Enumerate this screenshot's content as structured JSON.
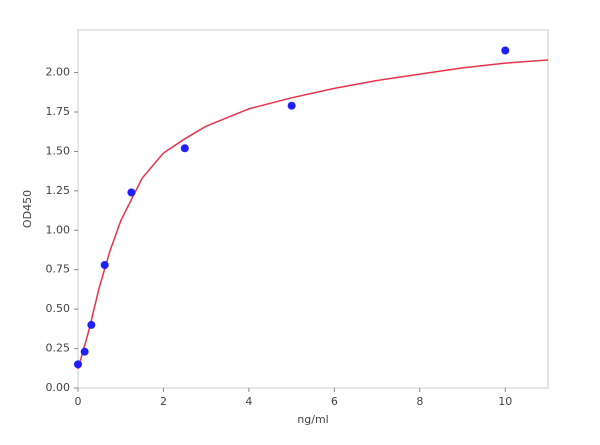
{
  "chart_data": {
    "type": "scatter",
    "xlabel": "ng/ml",
    "ylabel": "OD450",
    "xlim": [
      0,
      11
    ],
    "ylim": [
      0,
      2.27
    ],
    "xticks": [
      0,
      2,
      4,
      6,
      8,
      10
    ],
    "yticks": [
      {
        "value": 0,
        "label": "0.00"
      },
      {
        "value": 0.25,
        "label": "0.25"
      },
      {
        "value": 0.5,
        "label": "0.50"
      },
      {
        "value": 0.75,
        "label": "0.75"
      },
      {
        "value": 1,
        "label": "1.00"
      },
      {
        "value": 1.25,
        "label": "1.25"
      },
      {
        "value": 1.5,
        "label": "1.50"
      },
      {
        "value": 1.75,
        "label": "1.75"
      },
      {
        "value": 2,
        "label": "2.00"
      }
    ],
    "grid": false,
    "series": [
      {
        "mode": "markers",
        "color": "#1f1fff",
        "x": [
          0,
          0.156,
          0.3125,
          0.625,
          1.25,
          2.5,
          5,
          10
        ],
        "values": [
          0.15,
          0.23,
          0.4,
          0.78,
          1.24,
          1.52,
          1.79,
          2.14
        ]
      },
      {
        "mode": "line",
        "color": "#e8334a",
        "x": [
          0,
          0.25,
          0.5,
          0.75,
          1,
          1.5,
          2,
          2.5,
          3,
          4,
          5,
          6,
          7,
          8,
          9,
          10,
          11
        ],
        "values": [
          0.12,
          0.36,
          0.64,
          0.87,
          1.06,
          1.33,
          1.49,
          1.58,
          1.66,
          1.77,
          1.84,
          1.9,
          1.95,
          1.99,
          2.03,
          2.06,
          2.08
        ]
      }
    ]
  }
}
